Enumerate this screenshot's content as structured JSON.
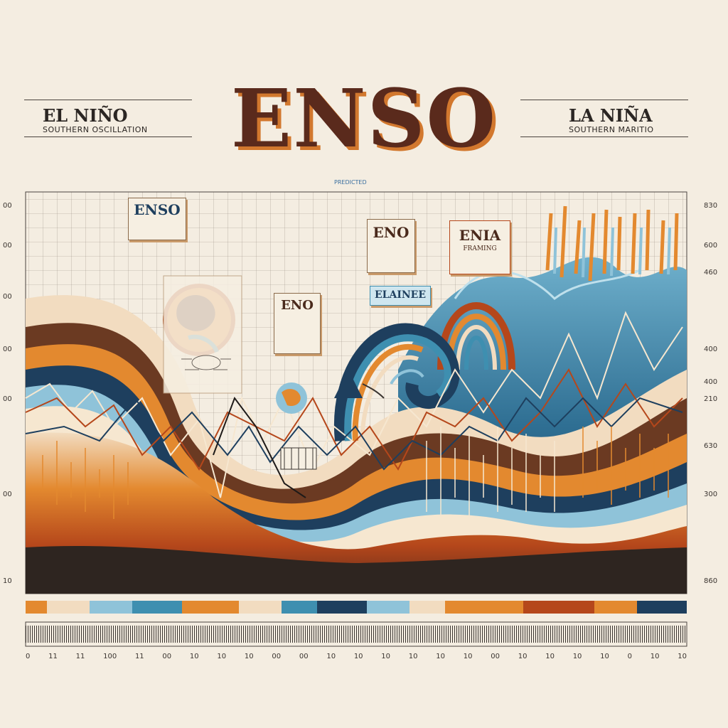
{
  "header": {
    "title": "ENSO",
    "left_title": "EL NIÑO",
    "left_subtitle": "SOUTHERN OSCILLATION",
    "right_title": "LA NIÑA",
    "right_subtitle": "SOUTHERN MARITIO"
  },
  "chart_caption": "PREDICTED",
  "callouts": {
    "enso_top_left": "ENSO",
    "enso_mid": "ENO",
    "eno_center": "ENO",
    "enia": "ENIA",
    "elainee": "ELAINEE",
    "enia_sub": "FRAMING"
  },
  "left_axis": [
    "00",
    "00",
    "00",
    "00",
    "00",
    "00",
    "10"
  ],
  "right_axis": [
    "830",
    "600",
    "460",
    "400",
    "400",
    "210",
    "630",
    "300",
    "860"
  ],
  "bottom_axis": [
    "0",
    "11",
    "11",
    "100",
    "11",
    "00",
    "10",
    "10",
    "10",
    "00",
    "00",
    "10",
    "10",
    "10",
    "10",
    "10",
    "10",
    "00",
    "10",
    "10",
    "10",
    "10",
    "0",
    "10",
    "10"
  ],
  "colors": {
    "rust": "#b5471b",
    "orange": "#e3892f",
    "cream": "#f2dcc0",
    "teal": "#3e8fb0",
    "navy": "#1e3f5e",
    "skyblue": "#8fc3d9",
    "brown": "#5a2a1c"
  }
}
